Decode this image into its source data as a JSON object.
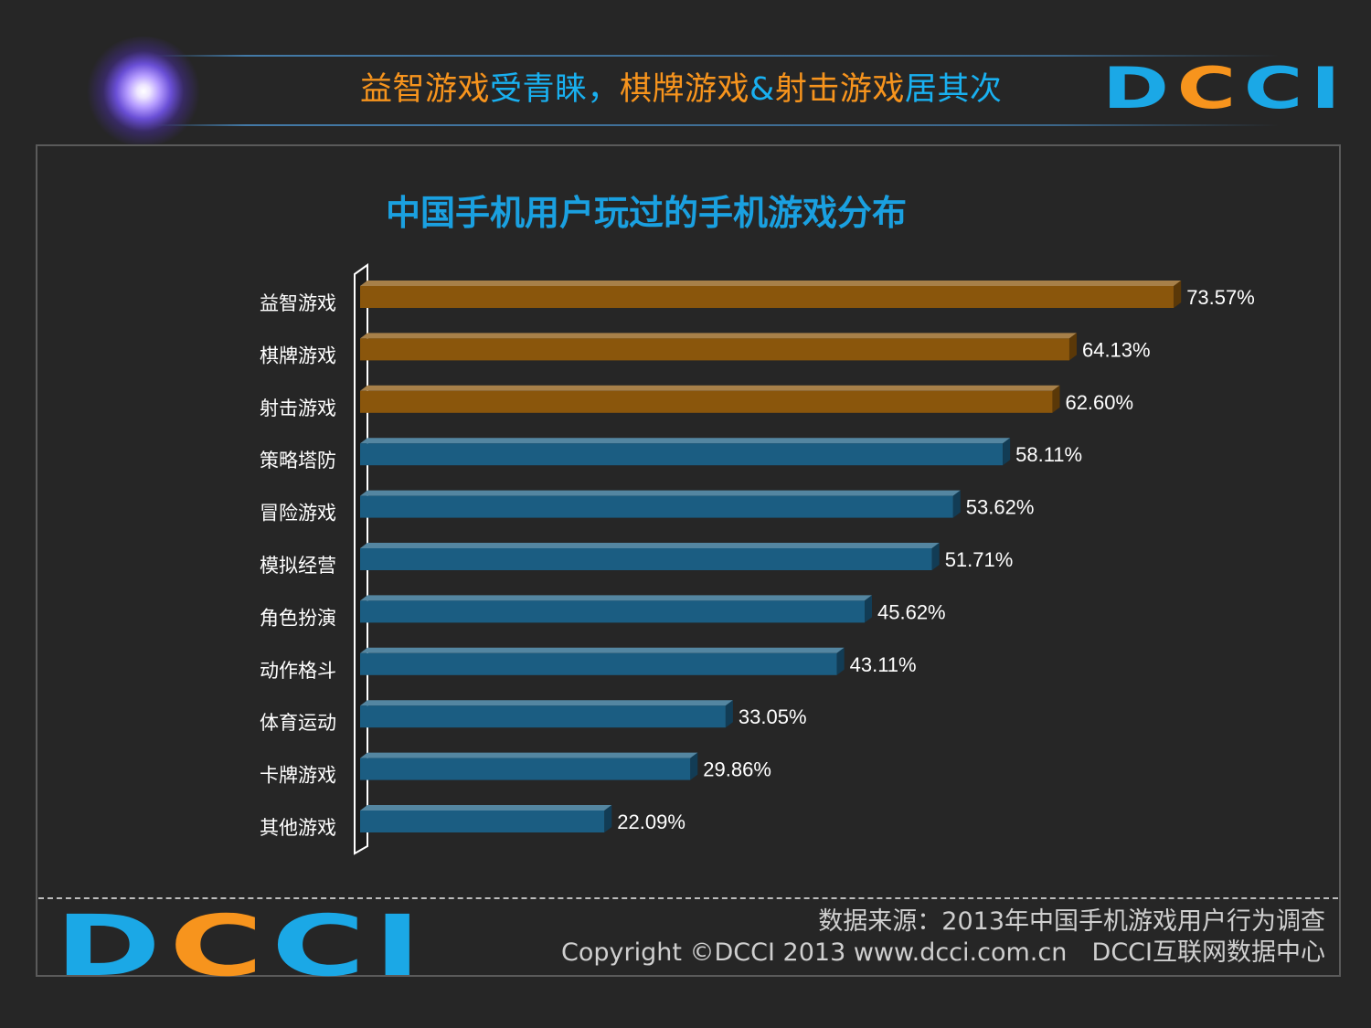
{
  "header": {
    "title_parts": [
      {
        "text": "益智游戏",
        "color": "#f7941d"
      },
      {
        "text": "受青睐，",
        "color": "#19b0f0"
      },
      {
        "text": "棋牌游戏",
        "color": "#f7941d"
      },
      {
        "text": "&",
        "color": "#19b0f0"
      },
      {
        "text": "射击游戏",
        "color": "#f7941d"
      },
      {
        "text": "居其次",
        "color": "#19b0f0"
      }
    ],
    "logo": {
      "letters": [
        "D",
        "C",
        "C",
        "I"
      ],
      "colors": [
        "#1ba8e6",
        "#f7941d",
        "#1ba8e6",
        "#1ba8e6"
      ]
    }
  },
  "chart_data": {
    "type": "bar",
    "orientation": "horizontal",
    "title": "中国手机用户玩过的手机游戏分布",
    "categories": [
      "益智游戏",
      "棋牌游戏",
      "射击游戏",
      "策略塔防",
      "冒险游戏",
      "模拟经营",
      "角色扮演",
      "动作格斗",
      "体育运动",
      "卡牌游戏",
      "其他游戏"
    ],
    "values": [
      73.57,
      64.13,
      62.6,
      58.11,
      53.62,
      51.71,
      45.62,
      43.11,
      33.05,
      29.86,
      22.09
    ],
    "value_labels": [
      "73.57%",
      "64.13%",
      "62.60%",
      "58.11%",
      "53.62%",
      "51.71%",
      "45.62%",
      "43.11%",
      "33.05%",
      "29.86%",
      "22.09%"
    ],
    "unit": "%",
    "highlight_count": 3,
    "colors": {
      "highlight": "#8a560c",
      "normal": "#1b5d82"
    },
    "grid": false,
    "legend": "none",
    "style": "3d"
  },
  "footer": {
    "source": "数据来源：2013年中国手机游戏用户行为调查",
    "copyright": "Copyright ©DCCI 2013 www.dcci.com.cn",
    "org": "DCCI互联网数据中心",
    "logo": {
      "letters": [
        "D",
        "C",
        "C",
        "I"
      ],
      "colors": [
        "#1ba8e6",
        "#f7941d",
        "#1ba8e6",
        "#1ba8e6"
      ]
    }
  }
}
